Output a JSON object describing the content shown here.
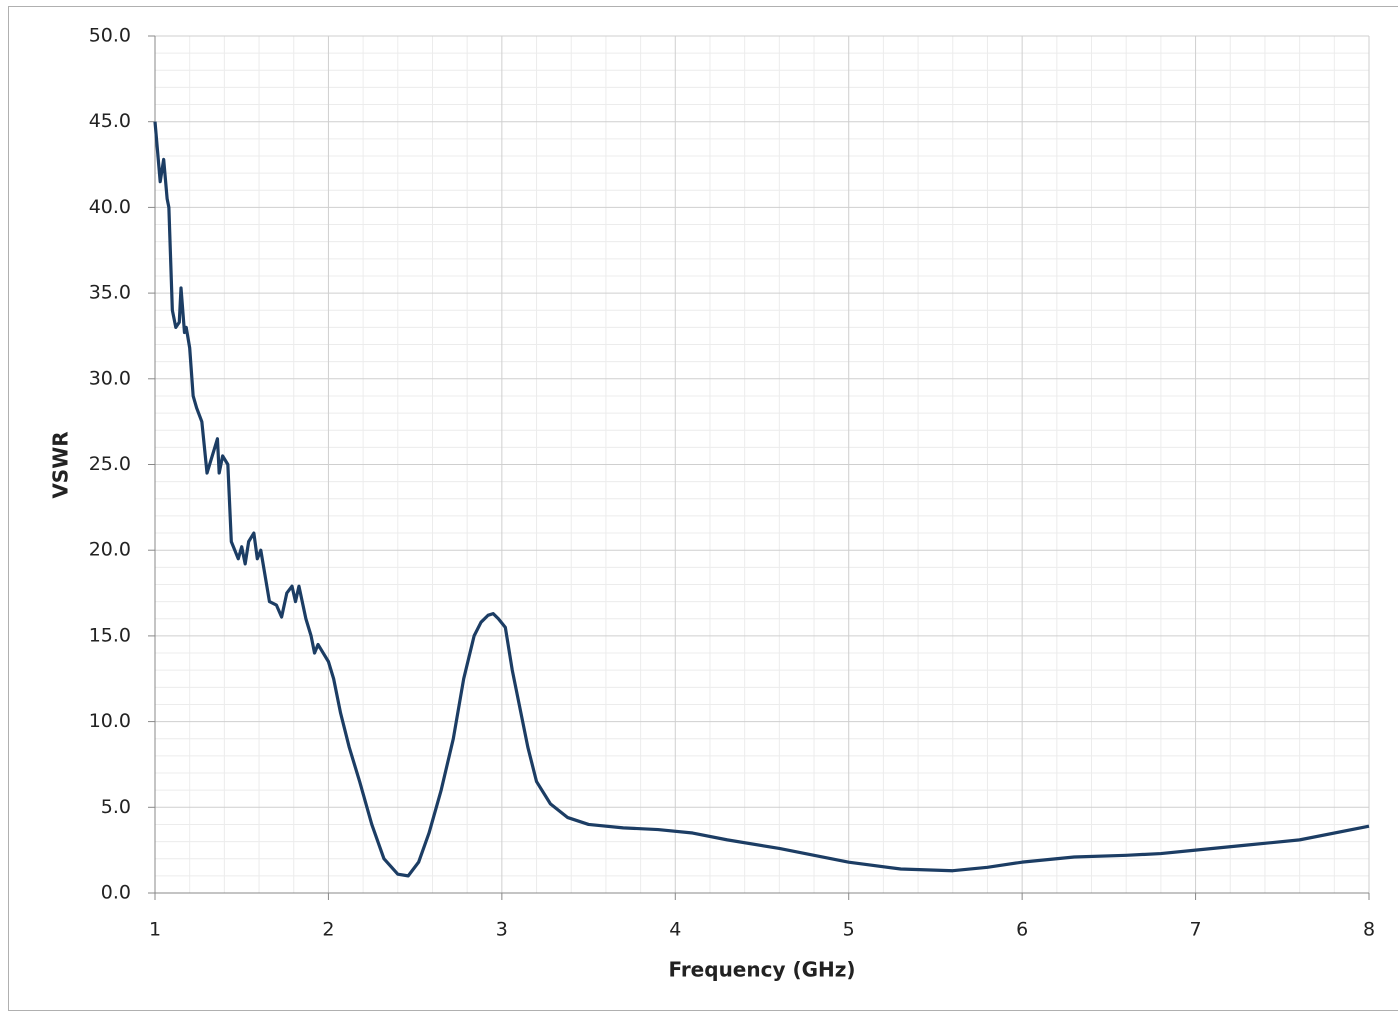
{
  "chart_data": {
    "type": "line",
    "x_label": "Frequency (GHz)",
    "y_label": "VSWR",
    "xlim": [
      1,
      8
    ],
    "xticks": [
      1,
      2,
      3,
      4,
      5,
      6,
      7,
      8
    ],
    "ylim": [
      0,
      50
    ],
    "yticks": [
      {
        "value": 0,
        "label": "0.0"
      },
      {
        "value": 5,
        "label": "5.0"
      },
      {
        "value": 10,
        "label": "10.0"
      },
      {
        "value": 15,
        "label": "15.0"
      },
      {
        "value": 20,
        "label": "20.0"
      },
      {
        "value": 25,
        "label": "25.0"
      },
      {
        "value": 30,
        "label": "30.0"
      },
      {
        "value": 35,
        "label": "35.0"
      },
      {
        "value": 40,
        "label": "40.0"
      },
      {
        "value": 45,
        "label": "45.0"
      },
      {
        "value": 50,
        "label": "50.0"
      }
    ],
    "grid": true,
    "minor_grid": true,
    "color": "#1c3d64",
    "x": [
      1.0,
      1.03,
      1.05,
      1.07,
      1.08,
      1.1,
      1.12,
      1.14,
      1.15,
      1.17,
      1.18,
      1.2,
      1.22,
      1.24,
      1.27,
      1.3,
      1.33,
      1.36,
      1.37,
      1.39,
      1.42,
      1.44,
      1.46,
      1.48,
      1.5,
      1.52,
      1.54,
      1.57,
      1.59,
      1.61,
      1.63,
      1.66,
      1.7,
      1.73,
      1.76,
      1.79,
      1.81,
      1.83,
      1.87,
      1.9,
      1.92,
      1.94,
      1.97,
      2.0,
      2.03,
      2.07,
      2.12,
      2.18,
      2.25,
      2.32,
      2.4,
      2.46,
      2.52,
      2.58,
      2.65,
      2.72,
      2.78,
      2.84,
      2.88,
      2.92,
      2.95,
      2.98,
      3.02,
      3.06,
      3.1,
      3.15,
      3.2,
      3.28,
      3.38,
      3.5,
      3.7,
      3.9,
      4.1,
      4.3,
      4.6,
      5.0,
      5.3,
      5.6,
      5.8,
      6.0,
      6.3,
      6.6,
      6.8,
      7.0,
      7.3,
      7.6,
      8.0
    ],
    "values": [
      45,
      41.5,
      42.8,
      40.5,
      40,
      34,
      33,
      33.3,
      35.3,
      32.7,
      33,
      31.8,
      29,
      28.3,
      27.5,
      24.5,
      25.5,
      26.5,
      24.5,
      25.5,
      25,
      20.5,
      20,
      19.5,
      20.2,
      19.2,
      20.5,
      21,
      19.5,
      20,
      18.8,
      17,
      16.8,
      16.1,
      17.5,
      17.9,
      17,
      17.9,
      16,
      15,
      14,
      14.5,
      14,
      13.5,
      12.5,
      10.5,
      8.5,
      6.5,
      4,
      2,
      1.1,
      1.0,
      1.8,
      3.5,
      6,
      9,
      12.5,
      15,
      15.8,
      16.2,
      16.3,
      16,
      15.5,
      13,
      11,
      8.5,
      6.5,
      5.2,
      4.4,
      4.0,
      3.8,
      3.7,
      3.5,
      3.1,
      2.6,
      1.8,
      1.4,
      1.3,
      1.5,
      1.8,
      2.1,
      2.2,
      2.3,
      2.5,
      2.8,
      3.1,
      3.9
    ]
  }
}
